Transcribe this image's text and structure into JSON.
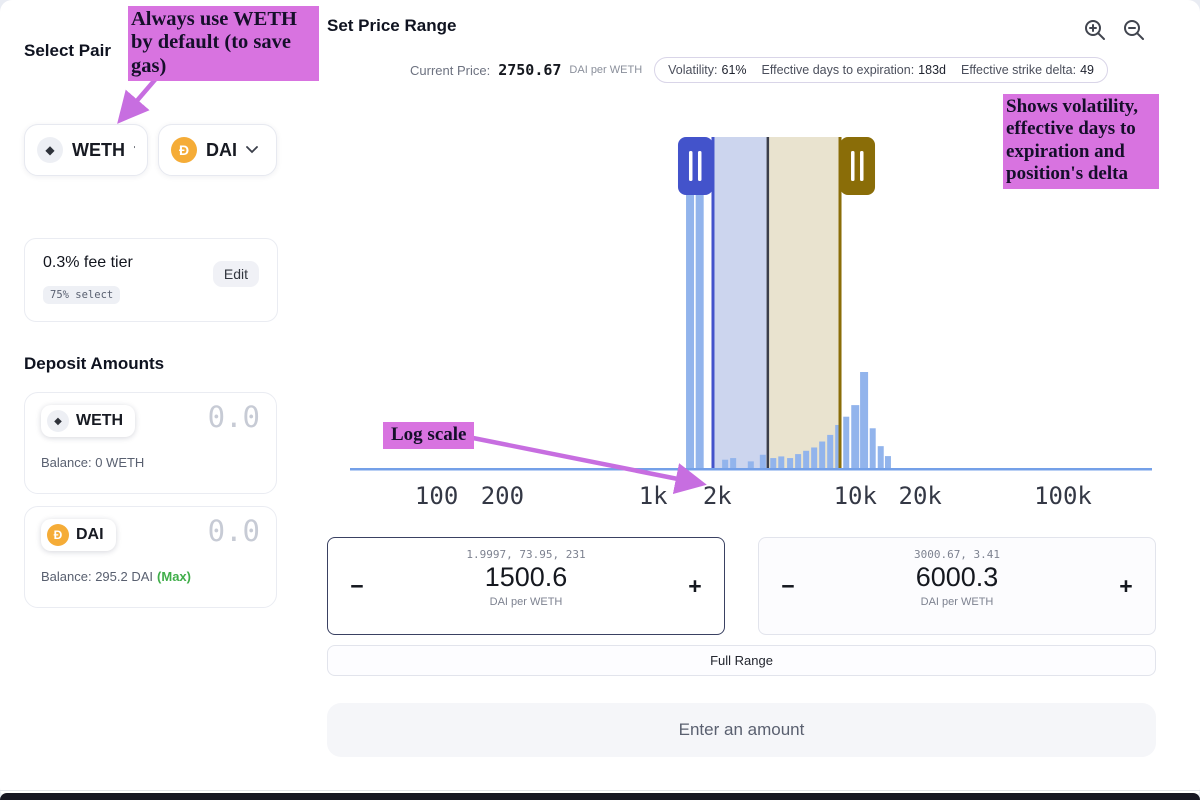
{
  "annotations": {
    "weth_note": "Always use WETH by default (to save gas)",
    "stats_note": "Shows volatility, effective days to expiration and position's delta",
    "log_note": "Log scale",
    "highlight_color": "#d873e0",
    "arrow_color": "#c76ee0"
  },
  "select_pair": {
    "title": "Select Pair",
    "token_a": {
      "symbol": "WETH"
    },
    "token_b": {
      "symbol": "DAI"
    },
    "fee_tier": {
      "label": "0.3% fee tier",
      "select_note": "75% select",
      "edit_label": "Edit"
    }
  },
  "deposit": {
    "title": "Deposit Amounts",
    "rows": [
      {
        "symbol": "WETH",
        "amount": "0.0",
        "balance": "Balance: 0 WETH",
        "max_label": ""
      },
      {
        "symbol": "DAI",
        "amount": "0.0",
        "balance": "Balance: 295.2 DAI",
        "max_label": "(Max)"
      }
    ]
  },
  "price_range": {
    "title": "Set Price Range",
    "current_price_label": "Current Price:",
    "current_price_value": "2750.67",
    "current_price_unit": "DAI per WETH",
    "stats": [
      {
        "label": "Volatility:",
        "value": "61%"
      },
      {
        "label": "Effective days to expiration:",
        "value": "183d"
      },
      {
        "label": "Effective strike delta:",
        "value": "49"
      }
    ],
    "min_input": {
      "sub_values": "1.9997, 73.95, 231",
      "value": "1500.6",
      "unit": "DAI per WETH",
      "minus": "−",
      "plus": "+"
    },
    "max_input": {
      "sub_values": "3000.67, 3.41",
      "value": "6000.3",
      "unit": "DAI per WETH",
      "minus": "−",
      "plus": "+"
    },
    "full_range_label": "Full Range",
    "submit_label": "Enter an amount"
  },
  "chart_data": {
    "type": "histogram",
    "subtype": "liquidity-distribution-with-range-brush",
    "x_scale": "log",
    "y": "relative liquidity (0-1, estimated)",
    "x_ticks": [
      {
        "label": "100",
        "pos": 0.108
      },
      {
        "label": "200",
        "pos": 0.19
      },
      {
        "label": "1k",
        "pos": 0.378
      },
      {
        "label": "2k",
        "pos": 0.458
      },
      {
        "label": "10k",
        "pos": 0.63
      },
      {
        "label": "20k",
        "pos": 0.711
      },
      {
        "label": "100k",
        "pos": 0.889
      }
    ],
    "current_price": 2750.67,
    "current_price_pos": 0.521,
    "range_min": 1500.6,
    "range_min_pos": 0.4526,
    "range_max": 6000.3,
    "range_max_pos": 0.611,
    "bars": [
      {
        "x": 0.419,
        "w": 0.01,
        "h": 1.0
      },
      {
        "x": 0.431,
        "w": 0.01,
        "h": 1.0
      },
      {
        "x": 0.464,
        "w": 0.0075,
        "h": 0.025
      },
      {
        "x": 0.474,
        "w": 0.0075,
        "h": 0.03
      },
      {
        "x": 0.496,
        "w": 0.0075,
        "h": 0.02
      },
      {
        "x": 0.511,
        "w": 0.0075,
        "h": 0.04
      },
      {
        "x": 0.524,
        "w": 0.0075,
        "h": 0.03
      },
      {
        "x": 0.534,
        "w": 0.0075,
        "h": 0.035
      },
      {
        "x": 0.545,
        "w": 0.0075,
        "h": 0.03
      },
      {
        "x": 0.555,
        "w": 0.0075,
        "h": 0.042
      },
      {
        "x": 0.565,
        "w": 0.0075,
        "h": 0.052
      },
      {
        "x": 0.575,
        "w": 0.0075,
        "h": 0.062
      },
      {
        "x": 0.585,
        "w": 0.0075,
        "h": 0.08
      },
      {
        "x": 0.595,
        "w": 0.0075,
        "h": 0.1
      },
      {
        "x": 0.605,
        "w": 0.0075,
        "h": 0.13
      },
      {
        "x": 0.615,
        "w": 0.0075,
        "h": 0.155
      },
      {
        "x": 0.625,
        "w": 0.01,
        "h": 0.19
      },
      {
        "x": 0.636,
        "w": 0.01,
        "h": 0.29
      },
      {
        "x": 0.648,
        "w": 0.0075,
        "h": 0.12
      },
      {
        "x": 0.658,
        "w": 0.0075,
        "h": 0.066
      },
      {
        "x": 0.667,
        "w": 0.0075,
        "h": 0.036
      }
    ],
    "colors": {
      "bar": "#92b4ec",
      "band_left": "#ccd5ee",
      "band_right": "#e9e3cf",
      "handle_left": "#4353cb",
      "handle_right": "#8a6d08",
      "axis": "#74a0e8",
      "price_line": "#3b3e49",
      "tick": "#343845"
    }
  }
}
